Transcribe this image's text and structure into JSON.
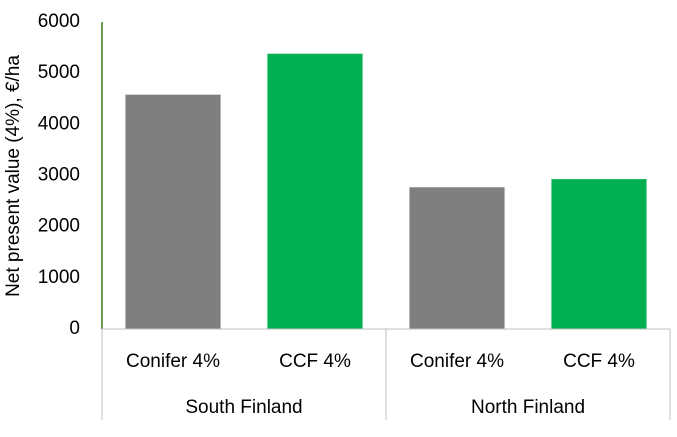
{
  "chart_data": {
    "type": "bar",
    "y_label": "Net present value (4%), €/ha",
    "categories": [
      "Conifer 4%",
      "CCF 4%",
      "Conifer 4%",
      "CCF 4%"
    ],
    "groups": [
      "South Finland",
      "North Finland"
    ],
    "values": [
      4580,
      5380,
      2770,
      2930
    ],
    "colors": [
      "#7f7f7f",
      "#00b050",
      "#7f7f7f",
      "#00b050"
    ],
    "ylim": [
      0,
      6000
    ],
    "yticks": [
      0,
      1000,
      2000,
      3000,
      4000,
      5000,
      6000
    ],
    "grid": false
  }
}
